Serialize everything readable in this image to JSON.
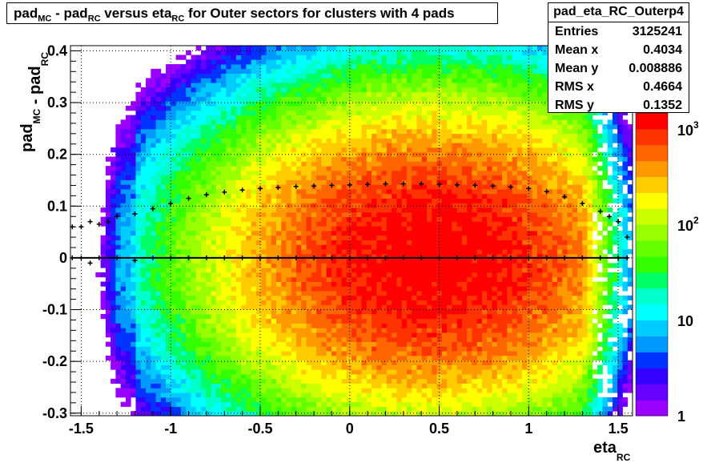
{
  "title": {
    "parts": [
      {
        "text": "pad",
        "sub": "MC"
      },
      {
        "text": " - pad",
        "sub": "RC"
      },
      {
        "text": " versus eta",
        "sub": "RC"
      },
      {
        "text": " for Outer sectors for clusters with 4 pads",
        "sub": ""
      }
    ]
  },
  "stats": {
    "name": "pad_eta_RC_Outerp4",
    "rows": [
      {
        "label": "Entries",
        "value": "3125241"
      },
      {
        "label": "Mean x",
        "value": "0.4034"
      },
      {
        "label": "Mean y",
        "value": "0.008886"
      },
      {
        "label": "RMS x",
        "value": "0.4664"
      },
      {
        "label": "RMS y",
        "value": "0.1352"
      }
    ]
  },
  "chart_data": {
    "type": "heatmap",
    "xlabel": {
      "text": "eta",
      "sub": "RC"
    },
    "ylabel": {
      "parts": [
        {
          "text": "pad",
          "sub": "MC"
        },
        {
          "text": " - pad",
          "sub": "RC"
        }
      ]
    },
    "xlim": [
      -1.56,
      1.58
    ],
    "ylim": [
      -0.305,
      0.41
    ],
    "x_ticks": [
      -1.5,
      -1,
      -0.5,
      0,
      0.5,
      1,
      1.5
    ],
    "x_tick_labels": [
      "-1.5",
      "-1",
      "-0.5",
      "0",
      "0.5",
      "1",
      "1.5"
    ],
    "y_ticks": [
      -0.3,
      -0.2,
      -0.1,
      0,
      0.1,
      0.2,
      0.3,
      0.4
    ],
    "y_tick_labels": [
      "-0.3",
      "-0.2",
      "-0.1",
      "0",
      "0.1",
      "0.2",
      "0.3",
      "0.4"
    ],
    "grid": true,
    "z_scale": "log",
    "z_range": [
      1,
      1500
    ],
    "z_tick_labels": [
      "1",
      "10",
      "10",
      "10"
    ],
    "z_tick_exponents": [
      "",
      "",
      "2",
      "3"
    ],
    "z_peak": 1500,
    "colors": [
      "#9900ff",
      "#6600ff",
      "#3300ff",
      "#0033ff",
      "#0099ff",
      "#00ccff",
      "#00ffff",
      "#00ffcc",
      "#00ff66",
      "#33ff00",
      "#66ff00",
      "#99ff00",
      "#ccff00",
      "#ffff00",
      "#ffcc00",
      "#ff9900",
      "#ff6600",
      "#ff3300",
      "#ff0000"
    ],
    "overlay_series": [
      {
        "name": "",
        "x": [
          -1.55,
          -1.5,
          -1.45,
          -1.4,
          -1.35,
          -1.3,
          -1.2,
          -1.1,
          -1.0,
          -0.9,
          -0.8,
          -0.7,
          -0.6,
          -0.5,
          -0.4,
          -0.3,
          -0.2,
          -0.1,
          0.0,
          0.1,
          0.2,
          0.3,
          0.4,
          0.5,
          0.6,
          0.7,
          0.8,
          0.9,
          1.0,
          1.1,
          1.2,
          1.3,
          1.4,
          1.45,
          1.5,
          1.55
        ],
        "y": [
          0.06,
          0.06,
          0.07,
          0.065,
          0.07,
          0.08,
          0.085,
          0.095,
          0.105,
          0.115,
          0.122,
          0.127,
          0.131,
          0.134,
          0.136,
          0.138,
          0.139,
          0.14,
          0.141,
          0.142,
          0.143,
          0.143,
          0.143,
          0.142,
          0.141,
          0.14,
          0.139,
          0.137,
          0.134,
          0.128,
          0.118,
          0.105,
          0.09,
          0.08,
          0.07,
          0.04
        ]
      },
      {
        "name": "",
        "x": [
          -1.55,
          -1.5,
          -1.45,
          -1.4,
          -1.3,
          -1.2,
          -1.1,
          -1.0,
          -0.9,
          -0.8,
          -0.7,
          -0.6,
          -0.5,
          -0.4,
          -0.3,
          -0.2,
          -0.1,
          0.0,
          0.1,
          0.2,
          0.3,
          0.4,
          0.5,
          0.6,
          0.7,
          0.8,
          0.9,
          1.0,
          1.1,
          1.2,
          1.3,
          1.4,
          1.5,
          1.55
        ],
        "y": [
          0.0,
          0.0,
          -0.01,
          0.0,
          0.0,
          -0.005,
          0.0,
          0.0,
          0.0,
          0.0,
          0.0,
          0.0,
          0.0,
          0.0,
          0.0,
          0.0,
          0.0,
          0.0,
          0.0,
          0.0,
          0.0,
          0.0,
          0.0,
          0.0,
          0.0,
          0.0,
          0.0,
          0.0,
          0.0,
          0.0,
          0.0,
          0.0,
          0.0,
          0.0
        ]
      }
    ]
  }
}
